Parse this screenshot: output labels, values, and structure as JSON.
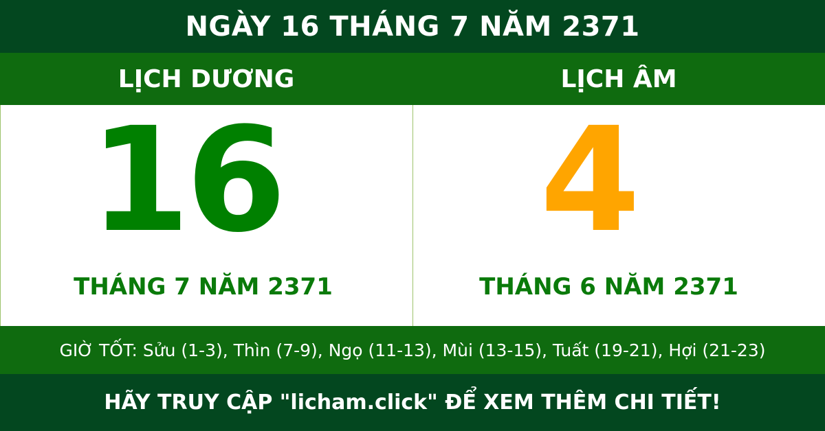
{
  "title": "NGÀY 16 THÁNG 7 NĂM 2371",
  "solar": {
    "heading": "LỊCH DƯƠNG",
    "day": "16",
    "month_year": "THÁNG 7 NĂM 2371"
  },
  "lunar": {
    "heading": "LỊCH ÂM",
    "day": "4",
    "month_year": "THÁNG 6 NĂM 2371"
  },
  "good_hours": "GIỜ TỐT: Sửu (1-3), Thìn (7-9), Ngọ (11-13), Mùi (13-15), Tuất (19-21), Hợi (21-23)",
  "footer": "HÃY TRUY CẬP \"licham.click\" ĐỂ XEM THÊM CHI TIẾT!",
  "colors": {
    "dark_green": "#03471f",
    "green": "#0f6b0f",
    "solar_day": "#008000",
    "lunar_day": "#ffa500"
  }
}
